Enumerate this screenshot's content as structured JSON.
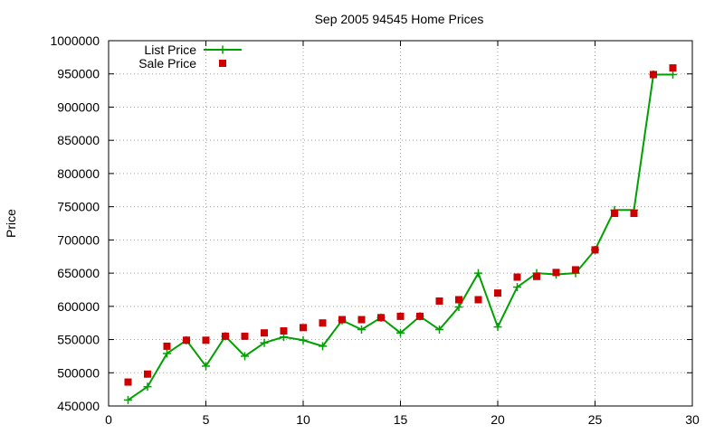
{
  "chart_data": {
    "type": "line",
    "title": "Sep 2005 94545 Home Prices",
    "xlabel": "",
    "ylabel": "Price",
    "xlim": [
      0,
      30
    ],
    "ylim": [
      450000,
      1000000
    ],
    "xticks": [
      "0",
      "5",
      "10",
      "15",
      "20",
      "25",
      "30"
    ],
    "yticks": [
      "450000",
      "500000",
      "550000",
      "600000",
      "650000",
      "700000",
      "750000",
      "800000",
      "850000",
      "900000",
      "950000",
      "1000000"
    ],
    "grid": true,
    "legend_position": "top-left",
    "series": [
      {
        "name": "List Price",
        "style": "line with plus markers",
        "color": "#00a000",
        "x": [
          1,
          2,
          3,
          4,
          5,
          6,
          7,
          8,
          9,
          10,
          11,
          12,
          13,
          14,
          15,
          16,
          17,
          18,
          19,
          20,
          21,
          22,
          23,
          24,
          25,
          26,
          27,
          28,
          29
        ],
        "y": [
          459000,
          479000,
          529000,
          549000,
          510000,
          555000,
          525000,
          545000,
          554000,
          549000,
          540000,
          579000,
          565000,
          583000,
          560000,
          585000,
          565000,
          599000,
          650000,
          569000,
          629000,
          650000,
          648000,
          650000,
          685000,
          745000,
          745000,
          949000,
          949000
        ]
      },
      {
        "name": "Sale Price",
        "style": "square markers",
        "color": "#cc0000",
        "x": [
          1,
          2,
          3,
          4,
          5,
          6,
          7,
          8,
          9,
          10,
          11,
          12,
          13,
          14,
          15,
          16,
          17,
          18,
          19,
          20,
          21,
          22,
          23,
          24,
          25,
          26,
          27,
          28,
          29
        ],
        "y": [
          486000,
          498000,
          540000,
          549000,
          549000,
          555000,
          555000,
          560000,
          563000,
          568000,
          575000,
          580000,
          580000,
          583000,
          585000,
          585000,
          608000,
          610000,
          610000,
          620000,
          644000,
          645000,
          651000,
          655000,
          685000,
          740000,
          740000,
          949000,
          959000
        ]
      }
    ]
  }
}
